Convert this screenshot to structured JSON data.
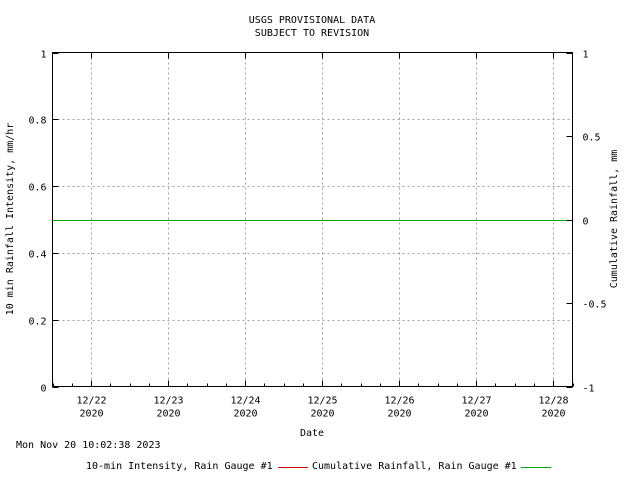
{
  "chart_data": {
    "type": "line",
    "title": "USGS PROVISIONAL DATA",
    "subtitle": "SUBJECT TO REVISION",
    "xlabel": "Date",
    "ylabel_left": "10 min Rainfall Intensity, mm/hr",
    "ylabel_right": "Cumulative Rainfall, mm",
    "x_ticks": [
      {
        "label": "12/22",
        "sublabel": "2020",
        "date": "2020-12-22"
      },
      {
        "label": "12/23",
        "sublabel": "2020",
        "date": "2020-12-23"
      },
      {
        "label": "12/24",
        "sublabel": "2020",
        "date": "2020-12-24"
      },
      {
        "label": "12/25",
        "sublabel": "2020",
        "date": "2020-12-25"
      },
      {
        "label": "12/26",
        "sublabel": "2020",
        "date": "2020-12-26"
      },
      {
        "label": "12/27",
        "sublabel": "2020",
        "date": "2020-12-27"
      },
      {
        "label": "12/28",
        "sublabel": "2020",
        "date": "2020-12-28"
      }
    ],
    "xlim": [
      "2020-12-21 12:00",
      "2020-12-28 06:00"
    ],
    "y_left_ticks": [
      "0",
      "0.2",
      "0.4",
      "0.6",
      "0.8",
      "1"
    ],
    "y_left_lim": [
      0,
      1
    ],
    "y_right_ticks": [
      "-1",
      "-0.5",
      "0",
      "0.5",
      "1"
    ],
    "y_right_lim": [
      -1,
      1
    ],
    "grid": true,
    "legend_placement": "bottom",
    "series": [
      {
        "name": "10-min Intensity, Rain Gauge #1",
        "color": "#cc0000",
        "axis": "left",
        "points": []
      },
      {
        "name": "Cumulative Rainfall, Rain Gauge #1",
        "color": "#00aa00",
        "axis": "right",
        "points": [
          {
            "x": "2020-12-21 12:00",
            "y": 0
          },
          {
            "x": "2020-12-28 06:00",
            "y": 0
          }
        ]
      }
    ]
  },
  "footer": {
    "timestamp": "Mon Nov 20 10:02:38 2023"
  }
}
